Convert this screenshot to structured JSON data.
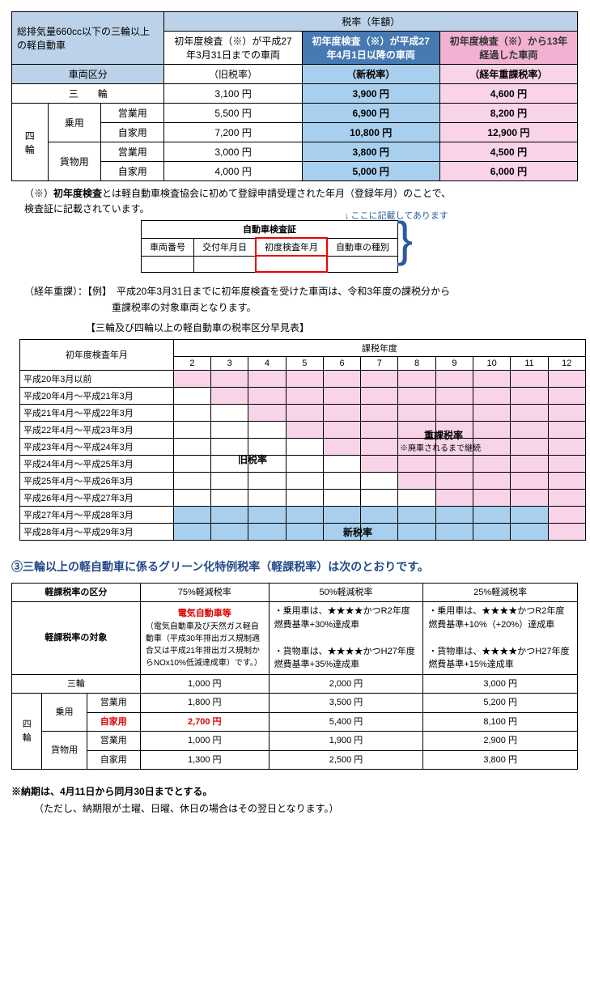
{
  "taxTable": {
    "header": {
      "topLeft": "総排気量660cc以下の三輪以上の軽自動車",
      "vehicleDiv": "車両区分",
      "rateAnnual": "税率（年額）",
      "col1a": "初年度検査（※）が平成27年3月31日までの車両",
      "col1b": "（旧税率）",
      "col2a": "初年度検査（※）が平成27年4月1日以降の車両",
      "col2b": "（新税率）",
      "col3a": "初年度検査（※）から13年経過した車両",
      "col3b": "（経年重課税率）"
    },
    "rows": [
      {
        "cat": "三　　輪",
        "old": "3,100 円",
        "new": "3,900 円",
        "heavy": "4,600 円"
      },
      {
        "cat": "四輪",
        "sub": "乗用",
        "use": "営業用",
        "old": "5,500 円",
        "new": "6,900 円",
        "heavy": "8,200 円"
      },
      {
        "use": "自家用",
        "old": "7,200 円",
        "new": "10,800 円",
        "heavy": "12,900 円"
      },
      {
        "sub": "貨物用",
        "use": "営業用",
        "old": "3,000 円",
        "new": "3,800 円",
        "heavy": "4,500 円"
      },
      {
        "use": "自家用",
        "old": "4,000 円",
        "new": "5,000 円",
        "heavy": "6,000 円"
      }
    ]
  },
  "notes": {
    "n1a": "（※）",
    "n1b": "初年度検査",
    "n1c": "とは軽自動車検査協会に初めて登録申請受理された年月（登録年月）のことで、",
    "n1d": "検査証に記載されています。",
    "certTitle": "自動車検査証",
    "certArrow": "ここに記載してあります",
    "certH1": "車両番号",
    "certH2": "交付年月日",
    "certH3": "初度検査年月",
    "certH4": "自動車の種別",
    "ex1": "（経年重課）：【例】　平成20年3月31日までに初年度検査を受けた車両は、令和3年度の課税分から",
    "ex2": "重課税率の対象車両となります。",
    "quickTitle": "【三輪及び四輪以上の軽自動車の税率区分早見表】"
  },
  "quick": {
    "h1": "初年度検査年月",
    "h2": "課税年度",
    "years": [
      "2",
      "3",
      "4",
      "5",
      "6",
      "7",
      "8",
      "9",
      "10",
      "11",
      "12"
    ],
    "rows": [
      "平成20年3月以前",
      "平成20年4月～平成21年3月",
      "平成21年4月～平成22年3月",
      "平成22年4月～平成23年3月",
      "平成23年4月～平成24年3月",
      "平成24年4月～平成25年3月",
      "平成25年4月～平成26年3月",
      "平成26年4月～平成27年3月",
      "平成27年4月～平成28年3月",
      "平成28年4月～平成29年3月"
    ],
    "labelOld": "旧税率",
    "labelNew": "新税率",
    "labelHeavy": "重課税率",
    "labelHeavySub": "※廃車されるまで継続",
    "pinkStart": [
      0,
      1,
      2,
      3,
      4,
      5,
      6,
      7,
      11,
      11
    ],
    "colors": {
      "pink": "#f9d4e9",
      "blue": "#a8d0ee",
      "white": "#ffffff"
    }
  },
  "sectionH": "③三輪以上の軽自動車に係るグリーン化特例税率（軽課税率）は次のとおりです。",
  "green": {
    "hDiv": "軽課税率の区分",
    "hTarget": "軽課税率の対象",
    "h75": "75%軽減税率",
    "h50": "50%軽減税率",
    "h25": "25%軽減税率",
    "t75a": "電気自動車等",
    "t75b": "（電気自動車及び天然ガス軽自動車（平成30年排出ガス規制適合又は平成21年排出ガス規制からNOx10%低減達成車）です。）",
    "t50a": "・乗用車は、★★★★かつR2年度燃費基準+30%達成車",
    "t50b": "・貨物車は、★★★★かつH27年度燃費基準+35%達成車",
    "t25a": "・乗用車は、★★★★かつR2年度燃費基準+10%（+20%）達成車",
    "t25b": "・貨物車は、★★★★かつH27年度燃費基準+15%達成車",
    "rows": [
      {
        "cat": "三輪",
        "v75": "1,000 円",
        "v50": "2,000 円",
        "v25": "3,000 円"
      },
      {
        "cat": "四輪",
        "sub": "乗用",
        "use": "営業用",
        "v75": "1,800 円",
        "v50": "3,500 円",
        "v25": "5,200 円"
      },
      {
        "use": "自家用",
        "useRed": true,
        "v75": "2,700 円",
        "v75Red": true,
        "v50": "5,400 円",
        "v25": "8,100 円"
      },
      {
        "sub": "貨物用",
        "use": "営業用",
        "v75": "1,000 円",
        "v50": "1,900 円",
        "v25": "2,900 円"
      },
      {
        "use": "自家用",
        "v75": "1,300 円",
        "v50": "2,500 円",
        "v25": "3,800 円"
      }
    ]
  },
  "deadline": "※納期は、4月11日から同月30日までとする。",
  "deadlineSub": "（ただし、納期限が土曜、日曜、休日の場合はその翌日となります。）"
}
